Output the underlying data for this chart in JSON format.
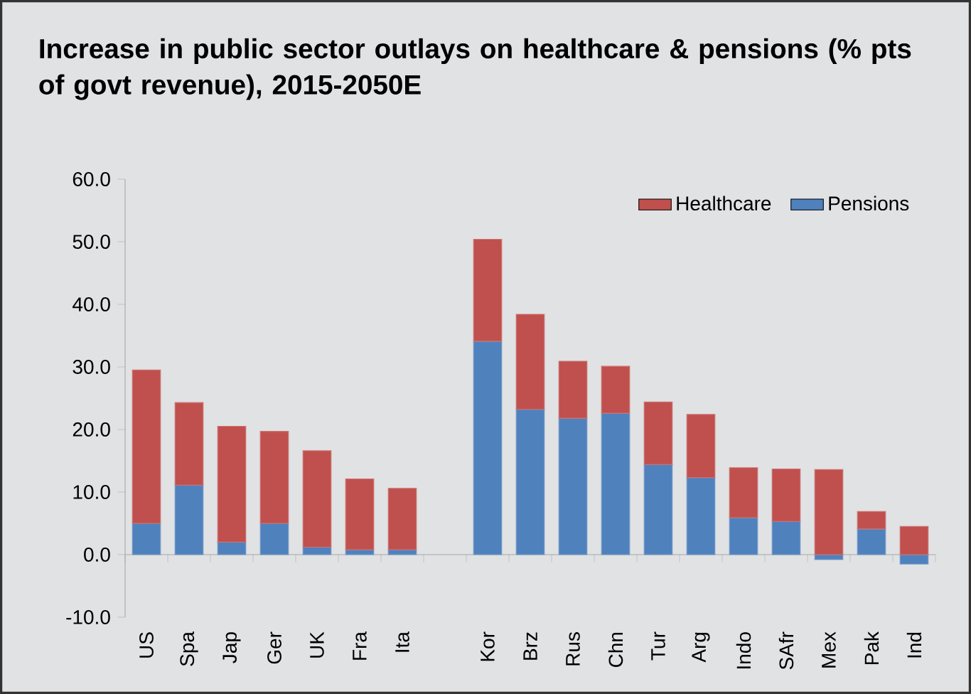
{
  "chart_data": {
    "type": "bar",
    "title": "Increase in public sector outlays on healthcare & pensions (% pts of govt revenue), 2015-2050E",
    "categories": [
      "US",
      "Spa",
      "Jap",
      "Ger",
      "UK",
      "Fra",
      "Ita",
      null,
      "Kor",
      "Brz",
      "Rus",
      "Chn",
      "Tur",
      "Arg",
      "Indo",
      "SAfr",
      "Mex",
      "Pak",
      "Ind"
    ],
    "series": [
      {
        "name": "Pensions",
        "color": "#4f81bd",
        "values": [
          5.0,
          11.1,
          2.0,
          5.0,
          1.2,
          0.8,
          0.8,
          null,
          34.1,
          23.2,
          21.8,
          22.6,
          14.4,
          12.3,
          5.9,
          5.3,
          -0.8,
          4.1,
          -1.5
        ]
      },
      {
        "name": "Healthcare",
        "color": "#c0504d",
        "values": [
          24.5,
          13.2,
          18.5,
          14.7,
          15.4,
          11.3,
          9.8,
          null,
          16.3,
          15.2,
          9.1,
          7.5,
          10.0,
          10.1,
          8.0,
          8.4,
          13.6,
          2.8,
          4.5
        ]
      }
    ],
    "stacked": true,
    "ylim": [
      -10,
      60
    ],
    "yticks": [
      {
        "value": -10,
        "label": "-10.0"
      },
      {
        "value": 0,
        "label": "0.0"
      },
      {
        "value": 10,
        "label": "10.0"
      },
      {
        "value": 20,
        "label": "20.0"
      },
      {
        "value": 30,
        "label": "30.0"
      },
      {
        "value": 40,
        "label": "40.0"
      },
      {
        "value": 50,
        "label": "50.0"
      },
      {
        "value": 60,
        "label": "60.0"
      }
    ],
    "legend": "top right"
  }
}
